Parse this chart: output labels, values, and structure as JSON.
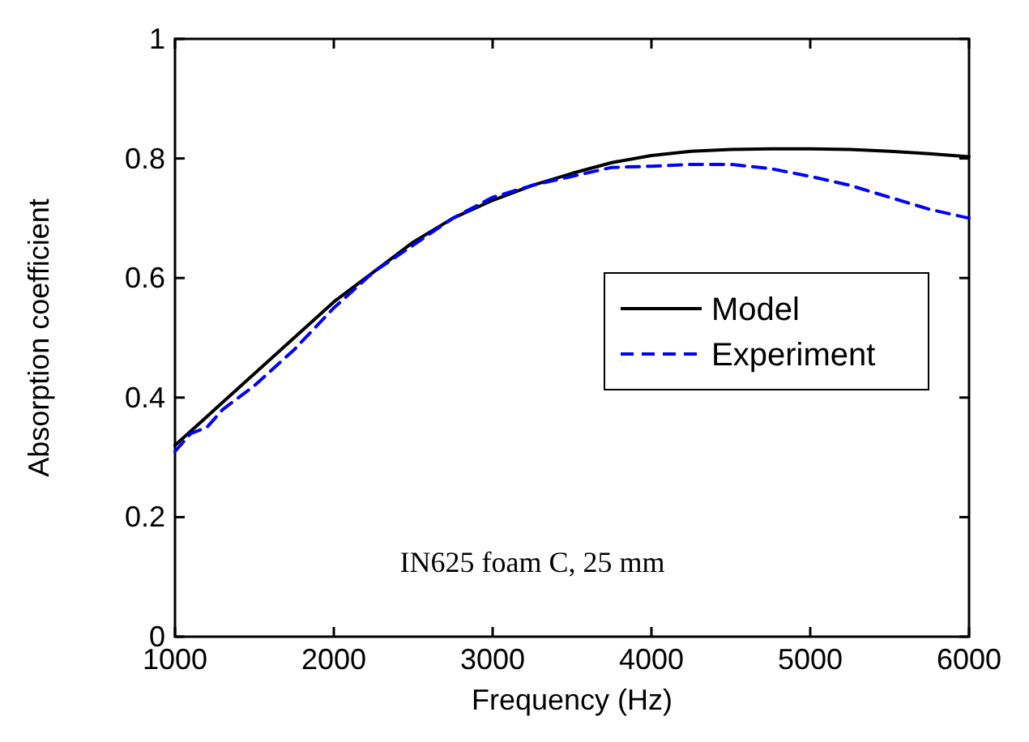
{
  "chart_data": {
    "type": "line",
    "xlabel": "Frequency (Hz)",
    "ylabel": "Absorption coefficient",
    "annotations": [
      "IN625 foam C, 25 mm"
    ],
    "xlim": [
      1000,
      6000
    ],
    "xticks": [
      1000,
      2000,
      3000,
      4000,
      5000,
      6000
    ],
    "ylim": [
      0,
      1
    ],
    "yticks": [
      0,
      0.2,
      0.4,
      0.6,
      0.8,
      1
    ],
    "grid": false,
    "legend": "right",
    "series": [
      {
        "name": "Model",
        "color": "#000000",
        "line_style": "solid",
        "x": [
          1000,
          1250,
          1500,
          1750,
          2000,
          2250,
          2500,
          2750,
          3000,
          3250,
          3500,
          3750,
          4000,
          4250,
          4500,
          4750,
          5000,
          5250,
          5500,
          5750,
          6000
        ],
        "values": [
          0.32,
          0.38,
          0.44,
          0.5,
          0.56,
          0.61,
          0.66,
          0.7,
          0.73,
          0.755,
          0.775,
          0.793,
          0.805,
          0.812,
          0.815,
          0.816,
          0.816,
          0.815,
          0.812,
          0.808,
          0.803
        ]
      },
      {
        "name": "Experiment",
        "color": "#0000ff",
        "line_style": "dashed",
        "x": [
          1000,
          1100,
          1200,
          1300,
          1400,
          1500,
          1750,
          2000,
          2250,
          2500,
          2750,
          3000,
          3250,
          3500,
          3750,
          4000,
          4250,
          4500,
          4750,
          5000,
          5250,
          5500,
          5750,
          6000
        ],
        "values": [
          0.31,
          0.34,
          0.35,
          0.38,
          0.4,
          0.42,
          0.48,
          0.55,
          0.61,
          0.655,
          0.7,
          0.735,
          0.755,
          0.77,
          0.785,
          0.787,
          0.79,
          0.79,
          0.783,
          0.77,
          0.755,
          0.735,
          0.715,
          0.7
        ]
      }
    ]
  }
}
